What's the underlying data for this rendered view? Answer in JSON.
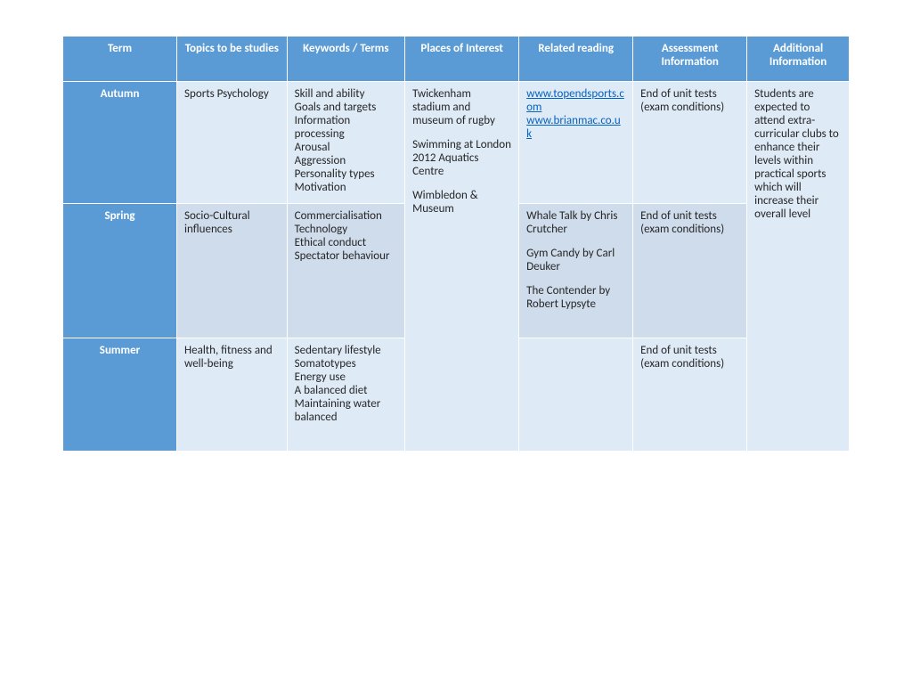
{
  "columns": [
    "Term",
    "Topics to be studies",
    "Keywords / Terms",
    "Places of Interest",
    "Related reading",
    "Assessment Information",
    "Additional Information"
  ],
  "col_widths": [
    "14.5%",
    "14%",
    "15%",
    "14.5%",
    "14.5%",
    "14.5%",
    "13%"
  ],
  "colors": {
    "header_bg": "#5b9bd5",
    "header_fg": "#ffffff",
    "row_light": "#deeaf6",
    "row_dark": "#cfdcec",
    "link": "#0563c1",
    "text": "#262626"
  },
  "places_of_interest": {
    "p1": "Twickenham stadium and museum of rugby",
    "p2": "Swimming at London 2012 Aquatics Centre",
    "p3": "Wimbledon & Museum"
  },
  "additional_info": "Students are expected to attend extra-curricular clubs to enhance their levels within practical sports which will increase their overall level",
  "rows": {
    "autumn": {
      "term": "Autumn",
      "topics": "Sports Psychology",
      "keywords": "Skill and ability\nGoals and targets\nInformation processing\nArousal\nAggression\nPersonality types\nMotivation",
      "reading_links": [
        {
          "text": "www.topendsports.com",
          "href": "http://www.topendsports.com"
        },
        {
          "text": "www.brianmac.co.uk",
          "href": "http://www.brianmac.co.uk"
        }
      ],
      "assessment": "End of unit tests (exam conditions)"
    },
    "spring": {
      "term": "Spring",
      "topics": "Socio-Cultural influences",
      "keywords": "Commercialisation\nTechnology\nEthical conduct\nSpectator behaviour",
      "reading_p1": "Whale Talk by Chris Crutcher",
      "reading_p2": "Gym Candy by Carl Deuker",
      "reading_p3": "The Contender by Robert Lypsyte",
      "assessment": "End of unit tests (exam conditions)"
    },
    "summer": {
      "term": "Summer",
      "topics": "Health, fitness and well-being",
      "keywords": "Sedentary lifestyle\nSomatotypes\nEnergy use\nA balanced diet\nMaintaining water balanced",
      "reading": "",
      "assessment": "End of unit tests (exam conditions)"
    }
  }
}
